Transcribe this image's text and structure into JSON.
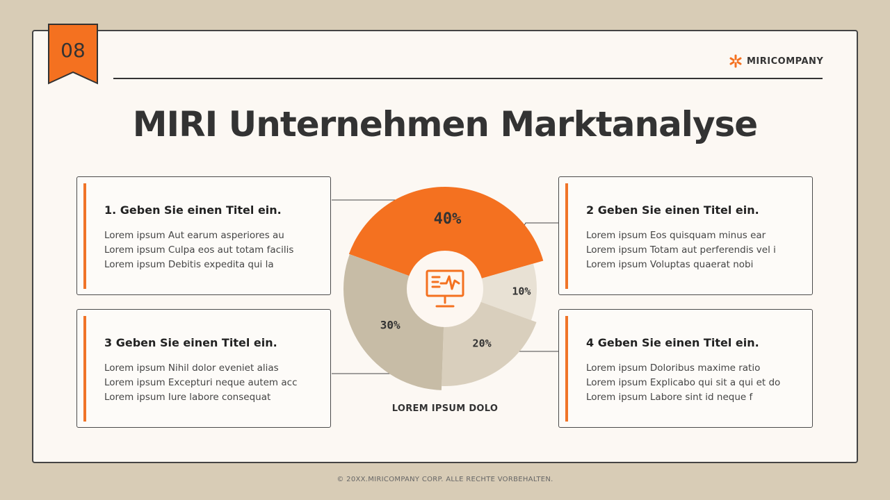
{
  "page": {
    "number": "08"
  },
  "brand": {
    "name": "MIRICOMPANY",
    "icon": "asterisk-logo-icon"
  },
  "title": "MIRI Unternehmen Marktanalyse",
  "cards": [
    {
      "title": "1. Geben Sie einen Titel ein.",
      "lines": [
        "Lorem ipsum Aut earum asperiores au",
        "Lorem ipsum Culpa eos aut totam facilis",
        "Lorem ipsum Debitis expedita qui la"
      ]
    },
    {
      "title": "2 Geben Sie einen Titel ein.",
      "lines": [
        "Lorem ipsum Eos quisquam minus ear",
        "Lorem ipsum Totam aut perferendis vel i",
        "Lorem ipsum Voluptas quaerat nobi"
      ]
    },
    {
      "title": "3 Geben Sie einen Titel ein.",
      "lines": [
        "Lorem ipsum Nihil dolor eveniet alias",
        "Lorem ipsum Excepturi neque autem acc",
        "Lorem ipsum Iure labore consequat"
      ]
    },
    {
      "title": "4 Geben Sie einen Titel ein.",
      "lines": [
        "Lorem ipsum Doloribus maxime ratio",
        "Lorem ipsum Explicabo qui sit a qui et do",
        "Lorem ipsum Labore sint id neque f"
      ]
    }
  ],
  "chart_data": {
    "type": "pie",
    "caption": "LOREM IPSUM DOLO",
    "center_icon": "monitor-chart-icon",
    "slices": [
      {
        "label": "40%",
        "value": 40,
        "color": "#f47120"
      },
      {
        "label": "10%",
        "value": 10,
        "color": "#e8e1d4"
      },
      {
        "label": "20%",
        "value": 20,
        "color": "#d9cfbd"
      },
      {
        "label": "30%",
        "value": 30,
        "color": "#c7bca6"
      }
    ]
  },
  "colors": {
    "accent": "#f47120",
    "background": "#d8ccb6",
    "frame": "#fcf8f3"
  },
  "footer": "© 20XX.MIRICOMPANY CORP. ALLE RECHTE VORBEHALTEN."
}
